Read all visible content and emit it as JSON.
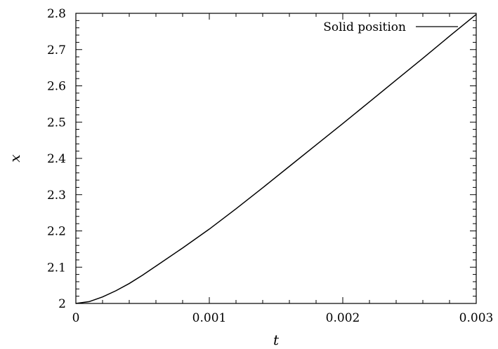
{
  "chart_data": {
    "type": "line",
    "title": "",
    "xlabel": "t",
    "ylabel": "x",
    "xlim": [
      0,
      0.003
    ],
    "ylim": [
      2,
      2.8
    ],
    "xticks": [
      0,
      0.001,
      0.002,
      0.003
    ],
    "xtick_labels": [
      "0",
      "0.001",
      "0.002",
      "0.003"
    ],
    "yticks": [
      2,
      2.1,
      2.2,
      2.3,
      2.4,
      2.5,
      2.6,
      2.7,
      2.8
    ],
    "ytick_labels": [
      "2",
      "2.1",
      "2.2",
      "2.3",
      "2.4",
      "2.5",
      "2.6",
      "2.7",
      "2.8"
    ],
    "grid": false,
    "legend_position": "top-right",
    "series": [
      {
        "name": "Solid position",
        "color": "#000000",
        "x": [
          0,
          0.0001,
          0.0002,
          0.0003,
          0.0004,
          0.0005,
          0.0006,
          0.0008,
          0.001,
          0.0012,
          0.0014,
          0.0016,
          0.0018,
          0.002,
          0.0022,
          0.0024,
          0.0026,
          0.0028,
          0.003
        ],
        "y": [
          2.0,
          2.005,
          2.018,
          2.035,
          2.055,
          2.078,
          2.103,
          2.153,
          2.205,
          2.261,
          2.319,
          2.378,
          2.437,
          2.496,
          2.556,
          2.616,
          2.676,
          2.737,
          2.797
        ]
      }
    ]
  }
}
